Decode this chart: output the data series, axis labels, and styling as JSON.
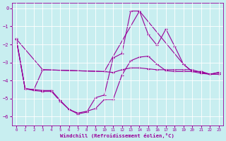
{
  "background_color": "#c8eef0",
  "line_color": "#990099",
  "grid_color": "#ffffff",
  "xlabel": "Windchill (Refroidissement éolien,°C)",
  "xlim": [
    -0.5,
    23.5
  ],
  "ylim": [
    -6.5,
    0.3
  ],
  "yticks": [
    0,
    -1,
    -2,
    -3,
    -4,
    -5,
    -6
  ],
  "xticks": [
    0,
    1,
    2,
    3,
    4,
    5,
    6,
    7,
    8,
    9,
    10,
    11,
    12,
    13,
    14,
    15,
    16,
    17,
    18,
    19,
    20,
    21,
    22,
    23
  ],
  "line1_x": [
    0,
    1,
    2,
    3,
    4,
    5,
    6,
    7,
    8,
    9,
    10,
    11,
    12,
    13,
    14,
    15,
    16,
    17,
    18,
    19,
    20,
    21,
    22,
    23
  ],
  "line1_y": [
    -1.7,
    -4.45,
    -4.5,
    -4.55,
    -4.55,
    -5.1,
    -5.6,
    -5.8,
    -5.7,
    -5.55,
    -5.05,
    -5.05,
    -3.7,
    -2.9,
    -2.7,
    -2.65,
    -3.1,
    -3.45,
    -3.5,
    -3.5,
    -3.5,
    -3.6,
    -3.65,
    -3.65
  ],
  "line2_x": [
    0,
    1,
    2,
    3,
    10,
    11,
    12,
    13,
    14,
    15,
    16,
    17,
    18,
    19,
    20,
    21,
    22,
    23
  ],
  "line2_y": [
    -1.7,
    -4.45,
    -4.5,
    -3.4,
    -3.5,
    -3.55,
    -3.4,
    -3.3,
    -3.3,
    -3.35,
    -3.4,
    -3.4,
    -3.4,
    -3.4,
    -3.4,
    -3.55,
    -3.65,
    -3.65
  ],
  "line3_x": [
    0,
    1,
    2,
    3,
    4,
    5,
    6,
    7,
    8,
    9,
    10,
    11,
    12,
    13,
    14,
    15,
    16,
    17,
    18,
    19,
    20,
    21,
    22,
    23
  ],
  "line3_y": [
    -1.7,
    -4.45,
    -4.55,
    -4.6,
    -4.6,
    -5.15,
    -5.6,
    -5.85,
    -5.75,
    -4.95,
    -4.8,
    -2.75,
    -2.5,
    -0.15,
    -0.15,
    -1.45,
    -2.05,
    -1.15,
    -2.1,
    -3.1,
    -3.5,
    -3.5,
    -3.65,
    -3.55
  ],
  "line4_x": [
    0,
    3,
    10,
    14,
    19,
    20,
    21,
    22,
    23
  ],
  "line4_y": [
    -1.7,
    -3.4,
    -3.5,
    -0.15,
    -3.1,
    -3.5,
    -3.5,
    -3.65,
    -3.55
  ]
}
